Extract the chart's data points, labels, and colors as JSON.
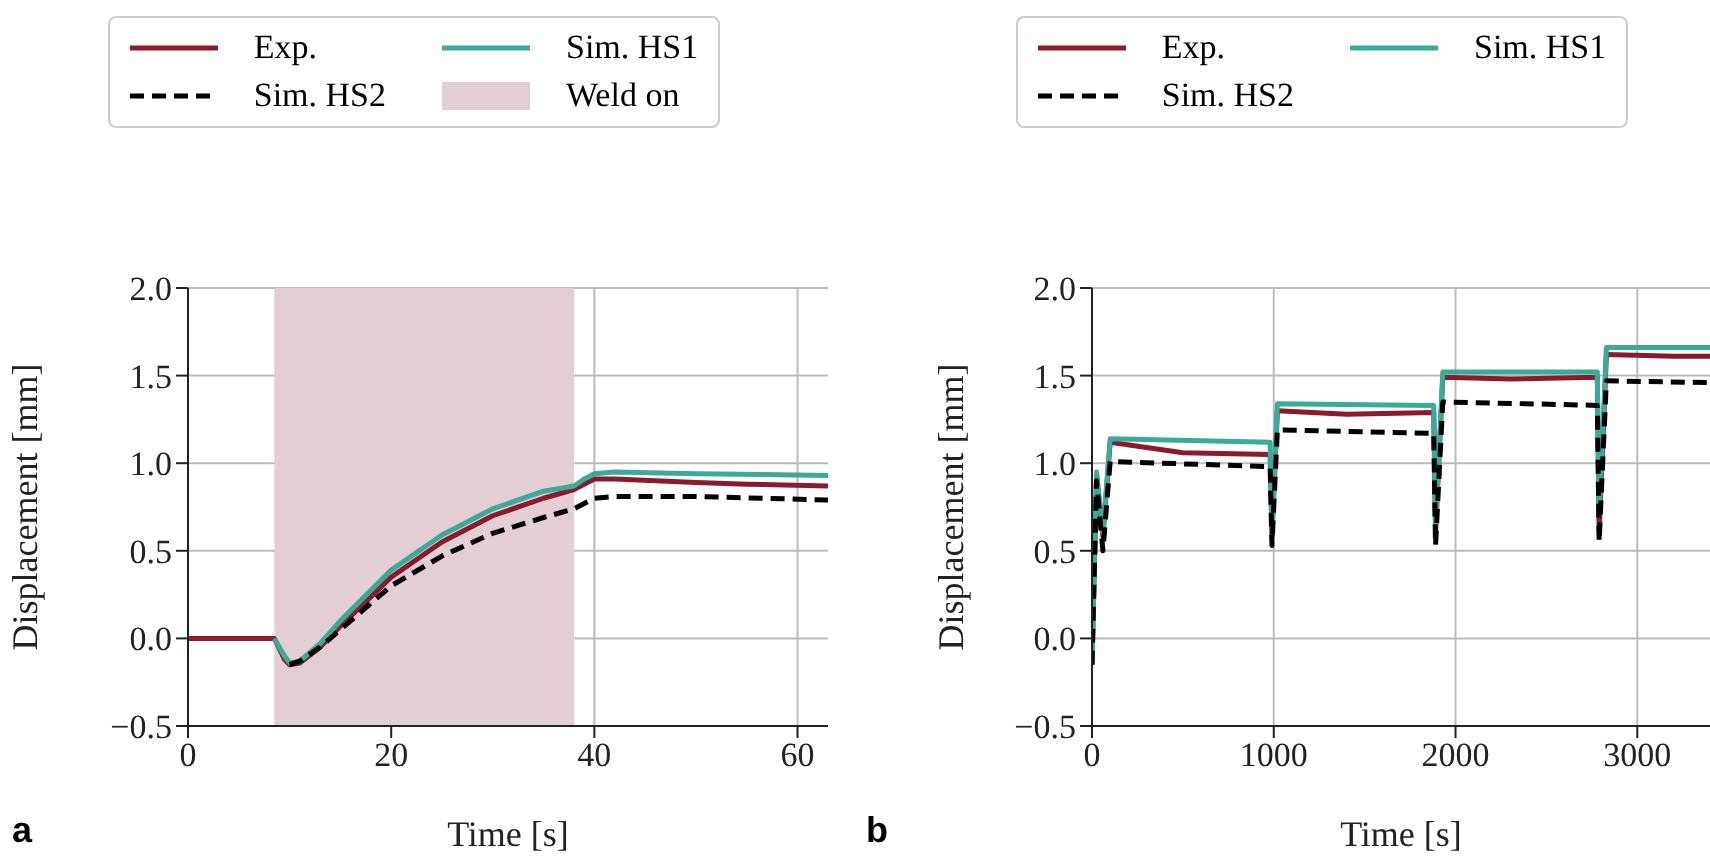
{
  "chart_data": [
    {
      "type": "line",
      "xlabel": "Time [s]",
      "ylabel": "Displacement [mm]",
      "xlim": [
        0,
        63
      ],
      "xticks": [
        0,
        20,
        40,
        60
      ],
      "ylim": [
        -0.5,
        2.0
      ],
      "yticks": [
        {
          "value": -0.5,
          "label": "−0.5"
        },
        {
          "value": 0,
          "label": "0.0"
        },
        {
          "value": 0.5,
          "label": "0.5"
        },
        {
          "value": 1,
          "label": "1.0"
        },
        {
          "value": 1.5,
          "label": "1.5"
        },
        {
          "value": 2,
          "label": "2.0"
        }
      ],
      "grid": true,
      "legend": "top",
      "marker": "none",
      "annotations": [
        "a"
      ],
      "bands": [
        {
          "axis": "x",
          "from": 8.5,
          "to": 38,
          "label": "Weld on",
          "color": "#e2ced3"
        }
      ],
      "series": [
        {
          "name": "Exp.",
          "color": "#8b1a2b",
          "line_style": "solid",
          "x": [
            0,
            8.5,
            9.5,
            10,
            11,
            13,
            15,
            20,
            25,
            30,
            35,
            38,
            39,
            40,
            42,
            50,
            55,
            63
          ],
          "values": [
            0,
            0,
            -0.12,
            -0.15,
            -0.14,
            -0.05,
            0.07,
            0.35,
            0.55,
            0.7,
            0.8,
            0.85,
            0.88,
            0.91,
            0.91,
            0.89,
            0.88,
            0.87
          ]
        },
        {
          "name": "Sim. HS1",
          "color": "#3aaa9a",
          "line_style": "solid",
          "x": [
            8.5,
            9.5,
            10,
            11,
            13,
            15,
            20,
            25,
            30,
            35,
            38,
            39,
            40,
            42,
            50,
            63
          ],
          "values": [
            0,
            -0.1,
            -0.14,
            -0.13,
            -0.03,
            0.1,
            0.39,
            0.59,
            0.74,
            0.84,
            0.87,
            0.91,
            0.94,
            0.95,
            0.94,
            0.93
          ]
        },
        {
          "name": "Sim. HS2",
          "color": "#000000",
          "line_style": "dashed",
          "x": [
            10,
            11,
            13,
            15,
            20,
            25,
            30,
            35,
            38,
            40,
            42,
            50,
            63
          ],
          "values": [
            -0.15,
            -0.13,
            -0.05,
            0.05,
            0.3,
            0.47,
            0.6,
            0.69,
            0.74,
            0.8,
            0.81,
            0.81,
            0.79
          ]
        }
      ]
    },
    {
      "type": "line",
      "xlabel": "Time [s]",
      "ylabel": "Displacement [mm]",
      "xlim": [
        0,
        3400
      ],
      "xticks": [
        0,
        1000,
        2000,
        3000
      ],
      "ylim": [
        -0.5,
        2.0
      ],
      "yticks": [
        {
          "value": -0.5,
          "label": "−0.5"
        },
        {
          "value": 0,
          "label": "0.0"
        },
        {
          "value": 0.5,
          "label": "0.5"
        },
        {
          "value": 1,
          "label": "1.0"
        },
        {
          "value": 1.5,
          "label": "1.5"
        },
        {
          "value": 2,
          "label": "2.0"
        }
      ],
      "grid": true,
      "legend": "top",
      "marker": "none",
      "annotations": [
        "b"
      ],
      "series": [
        {
          "name": "Exp.",
          "color": "#8b1a2b",
          "line_style": "solid",
          "x": [
            0,
            25,
            60,
            100,
            500,
            980,
            990,
            1020,
            1400,
            1880,
            1890,
            1930,
            2300,
            2780,
            2790,
            2830,
            3200,
            3400
          ],
          "values": [
            -0.15,
            0.93,
            0.58,
            1.12,
            1.06,
            1.05,
            0.58,
            1.3,
            1.28,
            1.29,
            0.6,
            1.49,
            1.48,
            1.49,
            0.6,
            1.62,
            1.61,
            1.61
          ]
        },
        {
          "name": "Sim. HS1",
          "color": "#3aaa9a",
          "line_style": "solid",
          "x": [
            0,
            25,
            60,
            100,
            980,
            990,
            1020,
            1880,
            1890,
            1930,
            2780,
            2790,
            2830,
            3400
          ],
          "values": [
            -0.15,
            0.95,
            0.6,
            1.14,
            1.12,
            0.6,
            1.34,
            1.33,
            0.65,
            1.52,
            1.52,
            0.7,
            1.66,
            1.66
          ]
        },
        {
          "name": "Sim. HS2",
          "color": "#000000",
          "line_style": "dashed",
          "x": [
            0,
            25,
            60,
            100,
            980,
            990,
            1020,
            1880,
            1890,
            1930,
            2780,
            2790,
            2830,
            3400
          ],
          "values": [
            -0.15,
            0.9,
            0.5,
            1.01,
            0.98,
            0.53,
            1.19,
            1.17,
            0.53,
            1.35,
            1.33,
            0.55,
            1.47,
            1.46
          ]
        }
      ]
    }
  ]
}
